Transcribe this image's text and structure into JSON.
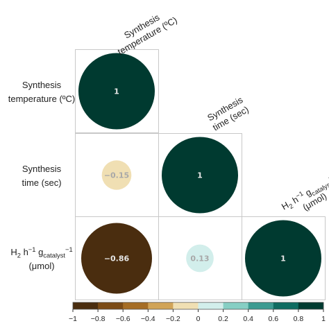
{
  "chart_data": {
    "type": "heatmap",
    "variables": [
      {
        "row_label_lines": [
          {
            "parts": [
              {
                "t": "Synthesis"
              }
            ]
          },
          {
            "parts": [
              {
                "t": "temperature (ºC)"
              }
            ]
          }
        ],
        "col_label_lines": [
          {
            "parts": [
              {
                "t": "Synthesis"
              }
            ]
          },
          {
            "parts": [
              {
                "t": "temperature (ºC)"
              }
            ]
          }
        ]
      },
      {
        "row_label_lines": [
          {
            "parts": [
              {
                "t": "Synthesis"
              }
            ]
          },
          {
            "parts": [
              {
                "t": "time (sec)"
              }
            ]
          }
        ],
        "col_label_lines": [
          {
            "parts": [
              {
                "t": "Synthesis"
              }
            ]
          },
          {
            "parts": [
              {
                "t": "time (sec)"
              }
            ]
          }
        ]
      },
      {
        "row_label_lines": [
          {
            "parts": [
              {
                "t": "H"
              },
              {
                "t": "2",
                "s": "sub"
              },
              {
                "t": " h"
              },
              {
                "t": "−1",
                "s": "sup"
              },
              {
                "t": " g"
              },
              {
                "t": "catalyst",
                "s": "sub"
              },
              {
                "t": "−1",
                "s": "sup"
              }
            ]
          },
          {
            "parts": [
              {
                "t": "(μmol)"
              }
            ]
          }
        ],
        "col_label_lines": [
          {
            "parts": [
              {
                "t": "H"
              },
              {
                "t": "2",
                "s": "sub"
              },
              {
                "t": " h"
              },
              {
                "t": "−1",
                "s": "sup"
              },
              {
                "t": " g"
              },
              {
                "t": "catalyst",
                "s": "sub"
              },
              {
                "t": "−1",
                "s": "sup"
              }
            ]
          },
          {
            "parts": [
              {
                "t": "(μmol)"
              }
            ]
          }
        ]
      }
    ],
    "cells": [
      {
        "row": 0,
        "col": 0,
        "value": 1,
        "label": "1"
      },
      {
        "row": 1,
        "col": 0,
        "value": -0.15,
        "label": "−0.15"
      },
      {
        "row": 1,
        "col": 1,
        "value": 1,
        "label": "1"
      },
      {
        "row": 2,
        "col": 0,
        "value": -0.86,
        "label": "−0.86"
      },
      {
        "row": 2,
        "col": 1,
        "value": 0.13,
        "label": "0.13"
      },
      {
        "row": 2,
        "col": 2,
        "value": 1,
        "label": "1"
      }
    ],
    "colorbar": {
      "range": [
        -1,
        1
      ],
      "bins": [
        "#4a2d0f",
        "#7b4b16",
        "#a56d25",
        "#d1a458",
        "#f0dfb3",
        "#d2eeeb",
        "#86cfc4",
        "#3c9b91",
        "#0f6c61",
        "#003a30"
      ],
      "tick_values": [
        -1,
        -0.8,
        -0.6,
        -0.4,
        -0.2,
        0,
        0.2,
        0.4,
        0.6,
        0.8,
        1
      ],
      "tick_labels": [
        "−1",
        "−0.8",
        "−0.6",
        "−0.4",
        "−0.2",
        "0",
        "0.2",
        "0.4",
        "0.6",
        "0.8",
        "1"
      ]
    },
    "grid_color": "#c8c8c8",
    "value_text_colors": {
      "strong": "#e6e6e6",
      "weak": "#a8a8a8"
    }
  }
}
